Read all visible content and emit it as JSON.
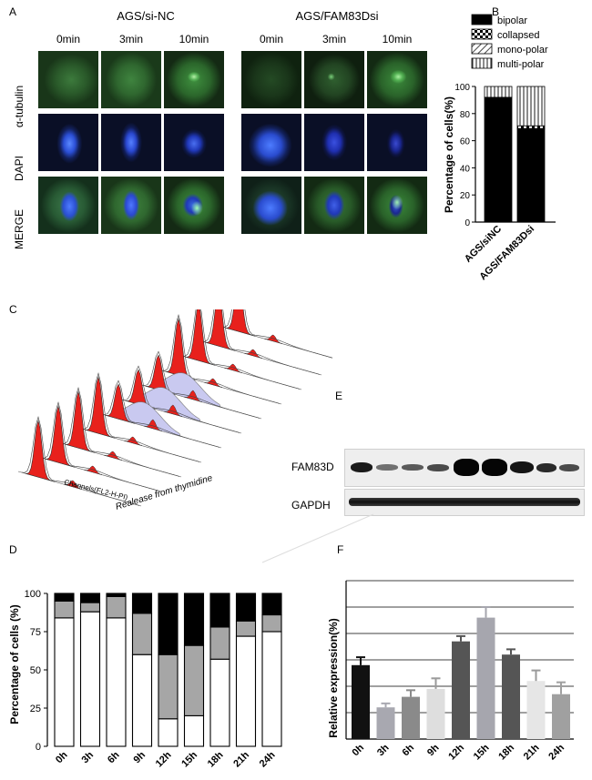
{
  "panels": {
    "a": "A",
    "b": "B",
    "c": "C",
    "d": "D",
    "e": "E",
    "f": "F"
  },
  "panel_a": {
    "groups": [
      "AGS/si-NC",
      "AGS/FAM83Dsi"
    ],
    "timepoints": [
      "0min",
      "3min",
      "10min",
      "0min",
      "3min",
      "10min"
    ],
    "rows": [
      "α-tubulin",
      "DAPI",
      "MERGE"
    ]
  },
  "panel_c": {
    "x_label": "Channels(FL2-H-PI)",
    "z_label": "Realease from thymidine"
  },
  "panel_e": {
    "bands": [
      "FAM83D",
      "GAPDH"
    ]
  },
  "chart_data": [
    {
      "panel": "B",
      "type": "bar",
      "stacked": true,
      "categories": [
        "AGS/siNC",
        "AGS/FAM83Dsi"
      ],
      "series": [
        {
          "name": "bipolar",
          "values": [
            92,
            69
          ]
        },
        {
          "name": "collapsed",
          "values": [
            0,
            2
          ]
        },
        {
          "name": "mono-polar",
          "values": [
            0,
            0
          ]
        },
        {
          "name": "multi-polar",
          "values": [
            8,
            29
          ]
        }
      ],
      "ylabel": "Percentage of cells(%)",
      "ylim": [
        0,
        100
      ],
      "yticks": [
        "0",
        "20",
        "40",
        "60",
        "80",
        "100"
      ],
      "legend": "top-right"
    },
    {
      "panel": "D",
      "type": "bar",
      "stacked": true,
      "categories": [
        "0h",
        "3h",
        "6h",
        "9h",
        "12h",
        "15h",
        "18h",
        "21h",
        "24h"
      ],
      "series": [
        {
          "values": [
            84,
            88,
            84,
            60,
            18,
            20,
            57,
            72,
            75
          ],
          "color": "#ffffff"
        },
        {
          "values": [
            11,
            6,
            14,
            27,
            42,
            46,
            21,
            10,
            11
          ],
          "color": "#a6a6a6"
        },
        {
          "values": [
            5,
            6,
            2,
            13,
            40,
            34,
            22,
            18,
            14
          ],
          "color": "#000000"
        }
      ],
      "ylabel": "Percentage of cells  (%)",
      "ylim": [
        0,
        100
      ],
      "yticks": [
        "0",
        "25",
        "50",
        "75",
        "100"
      ]
    },
    {
      "panel": "F",
      "type": "bar",
      "categories": [
        "0h",
        "3h",
        "6h",
        "9h",
        "12h",
        "15h",
        "18h",
        "21h",
        "24h"
      ],
      "values": [
        2.8,
        1.2,
        1.6,
        1.9,
        3.7,
        4.6,
        3.2,
        2.2,
        1.7
      ],
      "errors": [
        0.3,
        0.15,
        0.25,
        0.4,
        0.2,
        0.4,
        0.2,
        0.4,
        0.45
      ],
      "colors": [
        "#111111",
        "#a8a8b0",
        "#8a8a8a",
        "#dedede",
        "#555555",
        "#a6a6ae",
        "#555555",
        "#e6e6e6",
        "#a0a0a0"
      ],
      "ylabel": "Relative expression(%)",
      "ylim": [
        0,
        6
      ],
      "grid": true
    }
  ]
}
